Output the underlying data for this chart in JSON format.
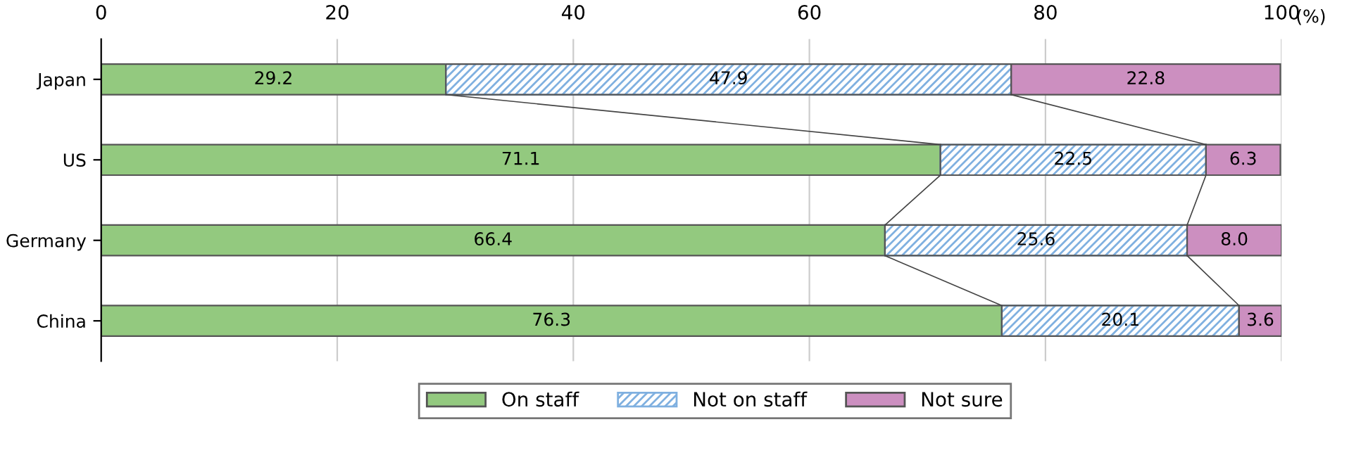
{
  "chart_data": {
    "type": "bar",
    "orientation": "horizontal",
    "stacked": true,
    "categories": [
      "Japan",
      "US",
      "Germany",
      "China"
    ],
    "series": [
      {
        "name": "On staff",
        "color": "#93c97f",
        "values": [
          29.2,
          71.1,
          66.4,
          76.3
        ],
        "value_labels": [
          "29.2",
          "71.1",
          "66.4",
          "76.3"
        ]
      },
      {
        "name": "Not on staff",
        "color": "#7fb0e0",
        "values": [
          47.9,
          22.5,
          25.6,
          20.1
        ],
        "value_labels": [
          "47.9",
          "22.5",
          "25.6",
          "20.1"
        ]
      },
      {
        "name": "Not sure",
        "color": "#cc8fc0",
        "values": [
          22.8,
          6.3,
          8.0,
          3.6
        ],
        "value_labels": [
          "22.8",
          "6.3",
          "8.0",
          "3.6"
        ]
      }
    ],
    "xlabel": "(%)",
    "xlim": [
      0,
      100
    ],
    "xticks": [
      0,
      20,
      40,
      60,
      80,
      100
    ],
    "grid": "x",
    "legend": "bottom"
  }
}
